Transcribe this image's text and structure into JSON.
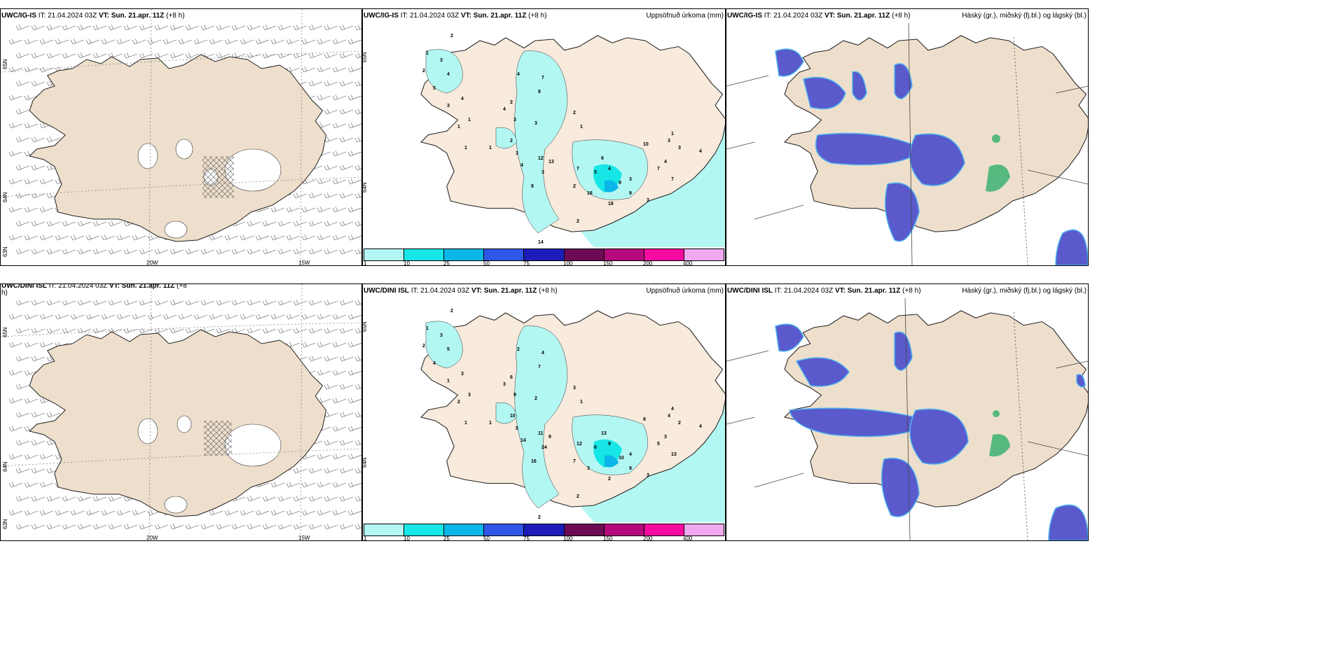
{
  "colors": {
    "land": "#eedfcc",
    "precip_bins": [
      "#b3f7f3",
      "#17e6e6",
      "#0ab6e8",
      "#3056e6",
      "#1c1db8",
      "#6c0a54",
      "#b50a7c",
      "#f60aa0",
      "#f0a8ef"
    ],
    "cloud": "#5a5acc",
    "cloud_edge": "#4db3f0",
    "low_cloud": "#3cb371"
  },
  "rows": [
    {
      "model": "UWC/IG-IS",
      "it": "21.04.2024 03Z",
      "vt_label": "VT:",
      "vt_value": "Sun. 21.apr. 11Z",
      "lead": "(+8 h)",
      "wind_panel": {
        "title_model": "UWC/IG-IS",
        "title_rest": "IT: 21.04.2024 03Z",
        "vt_label": "VT:",
        "vt_value": "Sun. 21.apr. 11Z",
        "lead": "(+8 h)",
        "lon_labels": [
          "20W",
          "15W"
        ],
        "lat_labels": [
          "65N",
          "64N",
          "63N"
        ]
      },
      "precip_panel": {
        "right_title": "Uppsöfnuð úrkoma (mm)",
        "numbers": [
          "2",
          "1",
          "3",
          "2",
          "4",
          "5",
          "4",
          "3",
          "4",
          "1",
          "7",
          "8",
          "2",
          "3",
          "4",
          "3",
          "2",
          "1",
          "2",
          "3",
          "4",
          "12",
          "13",
          "8",
          "3",
          "6",
          "7",
          "4",
          "10",
          "5",
          "3",
          "9",
          "2",
          "16",
          "18",
          "9",
          "7",
          "4",
          "3",
          "7",
          "3",
          "2",
          "14",
          "3",
          "1",
          "1",
          "1",
          "1",
          "3",
          "4"
        ]
      },
      "cloud_panel": {
        "right_title": "Háský (gr.), miðský (fj.bl.) og lágský (bl.)"
      }
    },
    {
      "model": "UWC/DINI ISL",
      "it": "21.04.2024 03Z",
      "vt_label": "VT:",
      "vt_value": "Sun. 21.apr. 11Z",
      "lead": "(+8 h)",
      "wind_panel": {
        "title_model": "UWC/DINI ISL",
        "title_rest": "IT: 21.04.2024 03Z",
        "vt_label": "VT:",
        "vt_value": "Sun. 21.apr. 11Z",
        "lead": "(+8",
        "lead2": "h)",
        "lon_labels": [
          "20W",
          "15W"
        ],
        "lat_labels": [
          "65N",
          "64N",
          "63N"
        ]
      },
      "precip_panel": {
        "right_title": "Uppsöfnuð úrkoma (mm)",
        "numbers": [
          "2",
          "1",
          "3",
          "2",
          "5",
          "4",
          "3",
          "1",
          "2",
          "3",
          "4",
          "7",
          "6",
          "9",
          "3",
          "2",
          "3",
          "1",
          "10",
          "5",
          "14",
          "11",
          "9",
          "16",
          "24",
          "13",
          "12",
          "9",
          "8",
          "6",
          "4",
          "10",
          "7",
          "3",
          "2",
          "9",
          "5",
          "3",
          "2",
          "13",
          "3",
          "2",
          "2",
          "2",
          "1",
          "1",
          "2",
          "4",
          "4",
          "4"
        ]
      },
      "cloud_panel": {
        "right_title": "Háský (gr.), miðský (fj.bl.) og lágský (bl.)"
      }
    }
  ],
  "colorbar_ticks": [
    "1",
    "10",
    "25",
    "50",
    "75",
    "100",
    "150",
    "200",
    "400"
  ]
}
